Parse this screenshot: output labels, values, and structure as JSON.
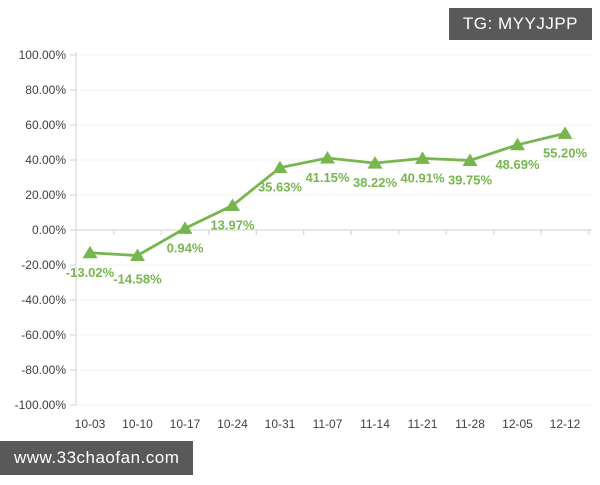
{
  "badges": {
    "tg": "TG: MYYJJPP",
    "site": "www.33chaofan.com"
  },
  "colors": {
    "series_green": "#77b64e",
    "badge_bg": "#595959",
    "badge_text": "#ffffff",
    "axis_line": "#d9d9d9",
    "gridline": "#f6f6f6",
    "tick_label": "#404040",
    "background": "#ffffff"
  },
  "chart_data": {
    "type": "line",
    "title": "",
    "xlabel": "",
    "ylabel": "",
    "legend": "none",
    "grid": "faint-horizontal",
    "marker": "triangle-up",
    "ylim": [
      -100,
      100
    ],
    "y_ticks": [
      100,
      80,
      60,
      40,
      20,
      0,
      -20,
      -40,
      -60,
      -80,
      -100
    ],
    "y_tick_labels": [
      "100.00%",
      "80.00%",
      "60.00%",
      "40.00%",
      "20.00%",
      "0.00%",
      "-20.00%",
      "-40.00%",
      "-60.00%",
      "-80.00%",
      "-100.00%"
    ],
    "categories": [
      "10-03",
      "10-10",
      "10-17",
      "10-24",
      "10-31",
      "11-07",
      "11-14",
      "11-21",
      "11-28",
      "12-05",
      "12-12"
    ],
    "values": [
      -13.02,
      -14.58,
      0.94,
      13.97,
      35.63,
      41.15,
      38.22,
      40.91,
      39.75,
      48.69,
      55.2
    ],
    "labels": [
      "-13.02%",
      "-14.58%",
      "0.94%",
      "13.97%",
      "35.63%",
      "41.15%",
      "38.22%",
      "40.91%",
      "39.75%",
      "48.69%",
      "55.20%"
    ]
  }
}
